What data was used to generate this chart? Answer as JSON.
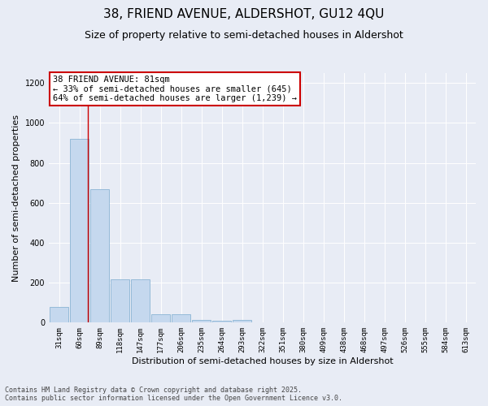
{
  "title_line1": "38, FRIEND AVENUE, ALDERSHOT, GU12 4QU",
  "title_line2": "Size of property relative to semi-detached houses in Aldershot",
  "xlabel": "Distribution of semi-detached houses by size in Aldershot",
  "ylabel": "Number of semi-detached properties",
  "categories": [
    "31sqm",
    "60sqm",
    "89sqm",
    "118sqm",
    "147sqm",
    "177sqm",
    "206sqm",
    "235sqm",
    "264sqm",
    "293sqm",
    "322sqm",
    "351sqm",
    "380sqm",
    "409sqm",
    "438sqm",
    "468sqm",
    "497sqm",
    "526sqm",
    "555sqm",
    "584sqm",
    "613sqm"
  ],
  "values": [
    80,
    920,
    670,
    215,
    215,
    40,
    40,
    15,
    10,
    15,
    0,
    0,
    0,
    0,
    0,
    0,
    0,
    0,
    0,
    0,
    0
  ],
  "bar_color": "#c5d8ee",
  "bar_edge_color": "#8ab4d4",
  "vline_x": 1.42,
  "vline_color": "#cc0000",
  "annotation_text": "38 FRIEND AVENUE: 81sqm\n← 33% of semi-detached houses are smaller (645)\n64% of semi-detached houses are larger (1,239) →",
  "annotation_box_color": "#ffffff",
  "annotation_box_edge_color": "#cc0000",
  "ylim": [
    0,
    1250
  ],
  "yticks": [
    0,
    200,
    400,
    600,
    800,
    1000,
    1200
  ],
  "background_color": "#e8ecf5",
  "plot_bg_color": "#e8ecf5",
  "grid_color": "#ffffff",
  "footer_line1": "Contains HM Land Registry data © Crown copyright and database right 2025.",
  "footer_line2": "Contains public sector information licensed under the Open Government Licence v3.0.",
  "title_fontsize": 11,
  "subtitle_fontsize": 9,
  "axis_label_fontsize": 8,
  "tick_fontsize": 6.5,
  "annotation_fontsize": 7.5,
  "footer_fontsize": 6
}
